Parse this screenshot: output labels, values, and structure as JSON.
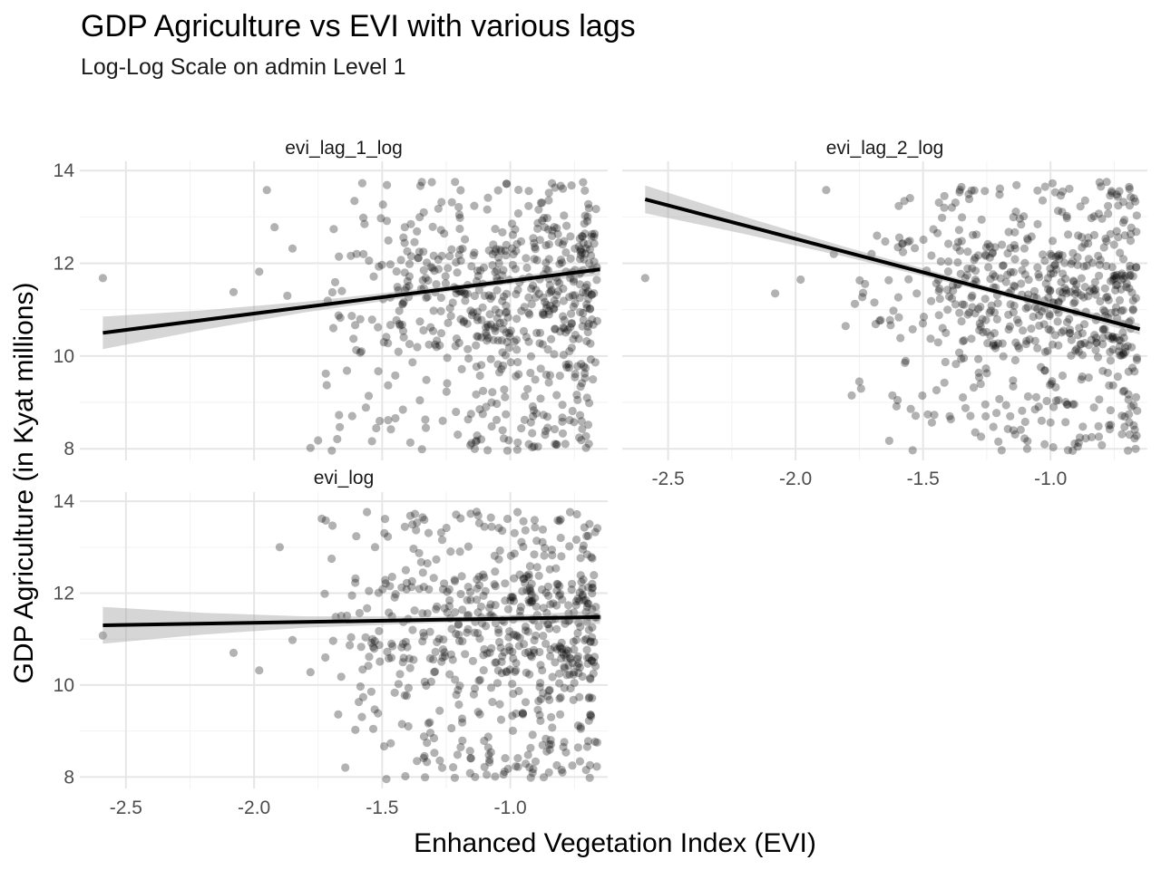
{
  "chart_data": {
    "type": "scatter",
    "title": "GDP Agriculture vs EVI with various lags",
    "subtitle": "Log-Log Scale on admin Level 1",
    "xlabel": "Enhanced Vegetation Index (EVI)",
    "ylabel": "GDP Agriculture (in Kyat millions)",
    "xlim": [
      -2.68,
      -0.62
    ],
    "ylim": [
      7.75,
      14.2
    ],
    "x_ticks": [
      -2.5,
      -2.0,
      -1.5,
      -1.0
    ],
    "x_tick_labels": [
      "-2.5",
      "-2.0",
      "-1.5",
      "-1.0"
    ],
    "y_ticks": [
      8,
      10,
      12,
      14
    ],
    "y_tick_labels": [
      "8",
      "10",
      "12",
      "14"
    ],
    "grid": true,
    "point_color": "#000000",
    "point_alpha": 0.3,
    "panels": [
      {
        "name": "evi_lag_1_log",
        "fit": {
          "x": [
            -2.59,
            -0.65
          ],
          "y": [
            10.5,
            11.87
          ]
        },
        "ci_halfwidth": [
          0.35,
          0.06,
          0.13
        ],
        "points": {
          "outliers": [
            [
              -2.59,
              11.68
            ],
            [
              -2.08,
              11.38
            ],
            [
              -1.98,
              11.82
            ],
            [
              -1.92,
              12.78
            ],
            [
              -1.95,
              13.58
            ],
            [
              -1.85,
              12.32
            ],
            [
              -1.87,
              11.3
            ],
            [
              -1.72,
              9.62
            ],
            [
              -1.78,
              8.02
            ],
            [
              -1.75,
              8.18
            ]
          ],
          "cluster": {
            "x_range": [
              -1.82,
              -0.66
            ],
            "y_range": [
              7.95,
              13.78
            ],
            "count": 620
          }
        }
      },
      {
        "name": "evi_lag_2_log",
        "fit": {
          "x": [
            -2.59,
            -0.65
          ],
          "y": [
            13.38,
            10.58
          ]
        },
        "ci_halfwidth": [
          0.3,
          0.06,
          0.12
        ],
        "points": {
          "outliers": [
            [
              -2.59,
              11.68
            ],
            [
              -2.08,
              11.35
            ],
            [
              -1.98,
              11.65
            ],
            [
              -1.88,
              13.58
            ],
            [
              -1.85,
              12.2
            ],
            [
              -1.78,
              9.15
            ],
            [
              -1.75,
              9.45
            ],
            [
              -1.6,
              9.05
            ],
            [
              -1.62,
              9.15
            ]
          ],
          "cluster": {
            "x_range": [
              -1.82,
              -0.66
            ],
            "y_range": [
              7.95,
              13.78
            ],
            "count": 620
          }
        }
      },
      {
        "name": "evi_log",
        "fit": {
          "x": [
            -2.59,
            -0.65
          ],
          "y": [
            11.3,
            11.48
          ]
        },
        "ci_halfwidth": [
          0.4,
          0.06,
          0.15
        ],
        "points": {
          "outliers": [
            [
              -2.59,
              11.08
            ],
            [
              -2.08,
              10.7
            ],
            [
              -1.98,
              10.32
            ],
            [
              -1.9,
              13.0
            ],
            [
              -1.85,
              10.98
            ],
            [
              -1.78,
              10.28
            ],
            [
              -1.72,
              13.58
            ]
          ],
          "cluster": {
            "x_range": [
              -1.8,
              -0.66
            ],
            "y_range": [
              7.95,
              13.78
            ],
            "count": 620
          }
        }
      }
    ]
  }
}
